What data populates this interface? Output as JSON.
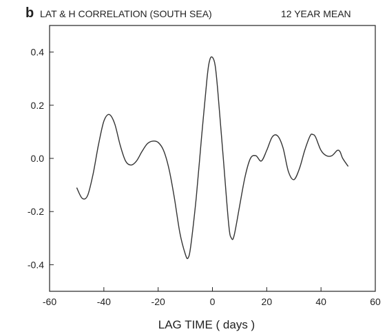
{
  "chart_data": {
    "type": "line",
    "panel_label": "b",
    "title": "LAT & H CORRELATION (SOUTH SEA)",
    "subtitle": "12 YEAR MEAN",
    "xlabel": "LAG TIME ( days )",
    "ylabel": "",
    "xlim": [
      -60,
      60
    ],
    "ylim": [
      -0.5,
      0.5
    ],
    "x_ticks": [
      -60,
      -40,
      -20,
      0,
      20,
      40,
      60
    ],
    "y_ticks": [
      -0.4,
      -0.2,
      0.0,
      0.2,
      0.4
    ],
    "y_tick_labels": [
      "-0.4",
      "-0.2",
      "0.0",
      "0.2",
      "0.4"
    ],
    "grid": false,
    "series": [
      {
        "x": [
          -50,
          -48,
          -46,
          -44,
          -42,
          -40,
          -38,
          -36,
          -34,
          -32,
          -30,
          -28,
          -26,
          -24,
          -22,
          -20,
          -18,
          -16,
          -14,
          -12,
          -10,
          -9,
          -8,
          -6,
          -4,
          -2,
          -1,
          0,
          1,
          2,
          4,
          6,
          7,
          8,
          10,
          12,
          14,
          16,
          18,
          20,
          22,
          24,
          26,
          28,
          30,
          32,
          34,
          36,
          37,
          38,
          40,
          42,
          44,
          46,
          47,
          48,
          50
        ],
        "y": [
          -0.11,
          -0.15,
          -0.14,
          -0.06,
          0.05,
          0.14,
          0.165,
          0.13,
          0.05,
          -0.01,
          -0.025,
          -0.01,
          0.025,
          0.055,
          0.065,
          0.06,
          0.03,
          -0.04,
          -0.15,
          -0.28,
          -0.36,
          -0.375,
          -0.33,
          -0.15,
          0.08,
          0.3,
          0.37,
          0.38,
          0.35,
          0.25,
          0.0,
          -0.25,
          -0.3,
          -0.29,
          -0.18,
          -0.07,
          0.0,
          0.01,
          -0.01,
          0.03,
          0.08,
          0.085,
          0.04,
          -0.05,
          -0.08,
          -0.04,
          0.03,
          0.085,
          0.09,
          0.08,
          0.03,
          0.01,
          0.01,
          0.03,
          0.025,
          0.0,
          -0.03
        ]
      }
    ],
    "colors": {
      "line": "#333333",
      "axis": "#222222",
      "text": "#222222"
    }
  }
}
